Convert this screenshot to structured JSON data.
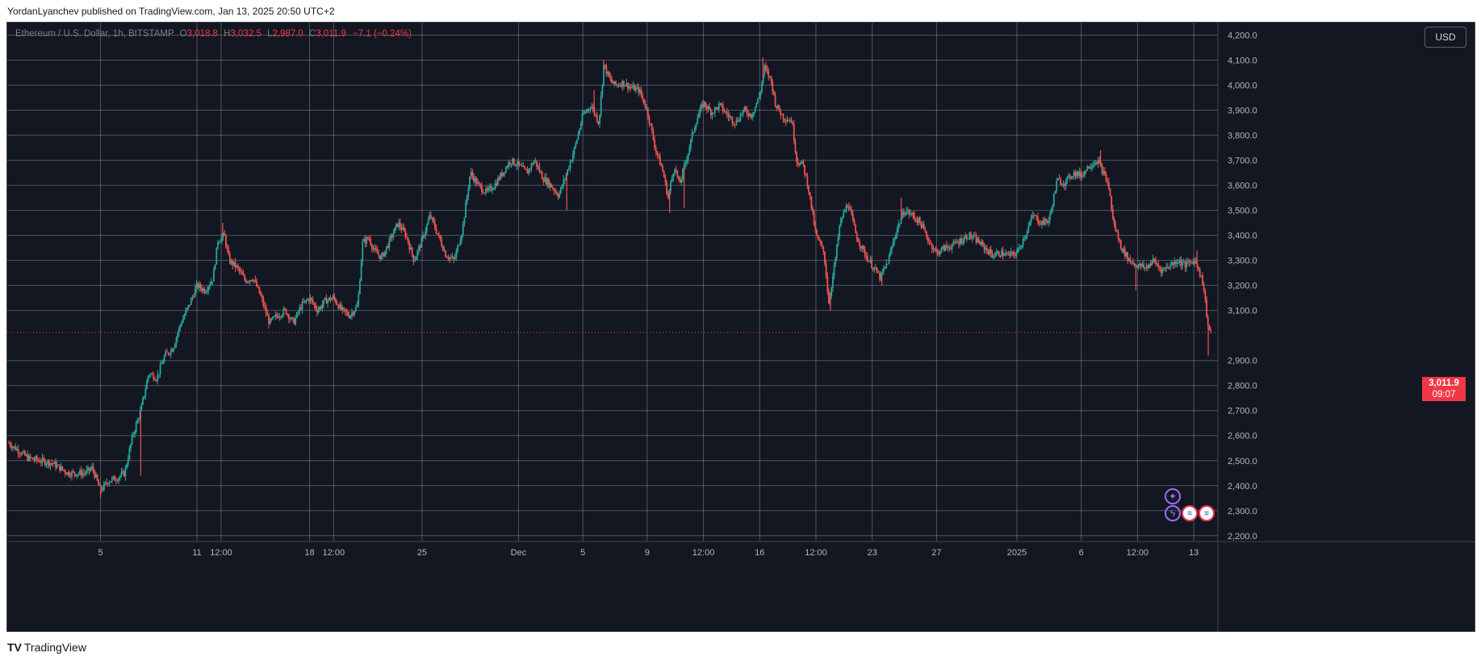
{
  "header": {
    "published_text": "YordanLyanchev published on TradingView.com, Jan 13, 2025 20:50 UTC+2"
  },
  "legend": {
    "symbol": "Ethereum / U.S. Dollar, 1h, BITSTAMP",
    "open_label": "O",
    "open": "3,018.8",
    "high_label": "H",
    "high": "3,032.5",
    "low_label": "L",
    "low": "2,987.0",
    "close_label": "C",
    "close": "3,011.9",
    "change": "−7.1 (−0.24%)"
  },
  "currency": "USD",
  "last_price": {
    "value": "3,011.9",
    "countdown": "09:07"
  },
  "footer": {
    "logo": "TV",
    "brand": "TradingView"
  },
  "colors": {
    "background": "#131722",
    "up": "#26a69a",
    "down": "#ef5350",
    "grid": "#9aa0ad",
    "price_line": "#f23645"
  },
  "icons": {
    "event_star": "star-icon",
    "event_lightning": "lightning-icon",
    "event_flag": "us-flag-icon"
  },
  "chart_data": {
    "type": "candlestick",
    "symbol": "Ethereum / U.S. Dollar",
    "interval": "1h",
    "exchange": "BITSTAMP",
    "ylim": [
      2180,
      4250
    ],
    "y_ticks": [
      "4,200.0",
      "4,100.0",
      "4,000.0",
      "3,900.0",
      "3,800.0",
      "3,700.0",
      "3,600.0",
      "3,500.0",
      "3,400.0",
      "3,300.0",
      "3,200.0",
      "3,100.0",
      "2,900.0",
      "2,800.0",
      "2,700.0",
      "2,600.0",
      "2,500.0",
      "2,400.0",
      "2,300.0",
      "2,200.0"
    ],
    "x_ticks": [
      "5",
      "11",
      "12:00",
      "18",
      "12:00",
      "25",
      "Dec",
      "5",
      "9",
      "12:00",
      "16",
      "12:00",
      "23",
      "27",
      "2025",
      "6",
      "12:00",
      "13"
    ],
    "x_tick_positions": [
      5,
      11,
      12.5,
      18,
      19.5,
      25,
      31,
      35,
      39,
      42.5,
      46,
      49.5,
      53,
      57,
      62,
      66,
      69.5,
      73
    ],
    "x_range": [
      -0.8,
      74.5
    ],
    "x_axis_note": "positions in days; day 0 = Oct 31 2024 00:00",
    "price_path": [
      [
        -0.7,
        2570
      ],
      [
        0.5,
        2510
      ],
      [
        2,
        2490
      ],
      [
        3,
        2450
      ],
      [
        4,
        2450
      ],
      [
        4.5,
        2470
      ],
      [
        5,
        2380
      ],
      [
        5.5,
        2420
      ],
      [
        6,
        2430
      ],
      [
        6.5,
        2450
      ],
      [
        7,
        2600
      ],
      [
        7.5,
        2700
      ],
      [
        8,
        2850
      ],
      [
        8.5,
        2830
      ],
      [
        9,
        2920
      ],
      [
        9.5,
        2950
      ],
      [
        10,
        3050
      ],
      [
        10.5,
        3120
      ],
      [
        11,
        3200
      ],
      [
        11.5,
        3180
      ],
      [
        12,
        3230
      ],
      [
        12.3,
        3380
      ],
      [
        12.7,
        3400
      ],
      [
        13,
        3300
      ],
      [
        13.5,
        3270
      ],
      [
        14,
        3220
      ],
      [
        14.5,
        3230
      ],
      [
        15,
        3150
      ],
      [
        15.5,
        3050
      ],
      [
        16,
        3080
      ],
      [
        16.5,
        3100
      ],
      [
        17,
        3050
      ],
      [
        17.5,
        3120
      ],
      [
        18,
        3150
      ],
      [
        18.5,
        3100
      ],
      [
        19,
        3140
      ],
      [
        19.5,
        3150
      ],
      [
        20,
        3100
      ],
      [
        20.5,
        3080
      ],
      [
        21,
        3120
      ],
      [
        21.3,
        3370
      ],
      [
        21.7,
        3390
      ],
      [
        22,
        3340
      ],
      [
        22.5,
        3310
      ],
      [
        23,
        3380
      ],
      [
        23.5,
        3450
      ],
      [
        24,
        3400
      ],
      [
        24.5,
        3300
      ],
      [
        25,
        3380
      ],
      [
        25.5,
        3480
      ],
      [
        26,
        3400
      ],
      [
        26.5,
        3320
      ],
      [
        27,
        3300
      ],
      [
        27.5,
        3420
      ],
      [
        28,
        3650
      ],
      [
        28.5,
        3600
      ],
      [
        29,
        3570
      ],
      [
        29.5,
        3600
      ],
      [
        30,
        3650
      ],
      [
        30.5,
        3700
      ],
      [
        31,
        3680
      ],
      [
        31.5,
        3650
      ],
      [
        32,
        3700
      ],
      [
        32.5,
        3630
      ],
      [
        33,
        3600
      ],
      [
        33.5,
        3560
      ],
      [
        34,
        3650
      ],
      [
        34.5,
        3750
      ],
      [
        35,
        3880
      ],
      [
        35.5,
        3920
      ],
      [
        36,
        3850
      ],
      [
        36.3,
        4080
      ],
      [
        36.7,
        4020
      ],
      [
        37,
        4000
      ],
      [
        37.5,
        4010
      ],
      [
        38,
        3990
      ],
      [
        38.5,
        3980
      ],
      [
        39,
        3900
      ],
      [
        39.5,
        3750
      ],
      [
        40,
        3650
      ],
      [
        40.3,
        3550
      ],
      [
        40.7,
        3680
      ],
      [
        41,
        3600
      ],
      [
        41.5,
        3720
      ],
      [
        42,
        3850
      ],
      [
        42.5,
        3930
      ],
      [
        43,
        3890
      ],
      [
        43.5,
        3920
      ],
      [
        44,
        3880
      ],
      [
        44.5,
        3850
      ],
      [
        45,
        3900
      ],
      [
        45.5,
        3880
      ],
      [
        46,
        3960
      ],
      [
        46.3,
        4070
      ],
      [
        46.7,
        4020
      ],
      [
        47,
        3920
      ],
      [
        47.5,
        3870
      ],
      [
        48,
        3860
      ],
      [
        48.3,
        3700
      ],
      [
        48.7,
        3680
      ],
      [
        49,
        3600
      ],
      [
        49.5,
        3400
      ],
      [
        50,
        3330
      ],
      [
        50.3,
        3130
      ],
      [
        50.7,
        3300
      ],
      [
        51,
        3450
      ],
      [
        51.5,
        3530
      ],
      [
        52,
        3400
      ],
      [
        52.5,
        3330
      ],
      [
        53,
        3280
      ],
      [
        53.5,
        3230
      ],
      [
        54,
        3300
      ],
      [
        54.5,
        3420
      ],
      [
        55,
        3500
      ],
      [
        55.5,
        3480
      ],
      [
        56,
        3450
      ],
      [
        56.5,
        3380
      ],
      [
        57,
        3330
      ],
      [
        57.5,
        3350
      ],
      [
        58,
        3360
      ],
      [
        58.5,
        3380
      ],
      [
        59,
        3400
      ],
      [
        59.5,
        3380
      ],
      [
        60,
        3350
      ],
      [
        60.5,
        3320
      ],
      [
        61,
        3330
      ],
      [
        61.5,
        3320
      ],
      [
        62,
        3330
      ],
      [
        62.5,
        3400
      ],
      [
        63,
        3480
      ],
      [
        63.5,
        3450
      ],
      [
        64,
        3460
      ],
      [
        64.5,
        3620
      ],
      [
        65,
        3610
      ],
      [
        65.5,
        3650
      ],
      [
        66,
        3640
      ],
      [
        66.5,
        3680
      ],
      [
        67,
        3700
      ],
      [
        67.3,
        3660
      ],
      [
        67.7,
        3600
      ],
      [
        68,
        3450
      ],
      [
        68.5,
        3350
      ],
      [
        69,
        3300
      ],
      [
        69.5,
        3280
      ],
      [
        70,
        3270
      ],
      [
        70.5,
        3300
      ],
      [
        71,
        3260
      ],
      [
        71.5,
        3280
      ],
      [
        72,
        3300
      ],
      [
        72.5,
        3280
      ],
      [
        73,
        3300
      ],
      [
        73.3,
        3270
      ],
      [
        73.6,
        3200
      ],
      [
        73.9,
        3030
      ],
      [
        74.1,
        3011.9
      ]
    ],
    "spikes_high": [
      [
        12.6,
        3450
      ],
      [
        35.7,
        3980
      ],
      [
        36.3,
        4100
      ],
      [
        46.2,
        4110
      ],
      [
        54.8,
        3550
      ],
      [
        67.2,
        3740
      ],
      [
        73.2,
        3340
      ]
    ],
    "spikes_low": [
      [
        5,
        2350
      ],
      [
        7.5,
        2440
      ],
      [
        34,
        3500
      ],
      [
        40.4,
        3490
      ],
      [
        41.3,
        3510
      ],
      [
        50.4,
        3100
      ],
      [
        53.6,
        3200
      ],
      [
        69.4,
        3180
      ],
      [
        73.9,
        2920
      ]
    ],
    "last_price": 3011.9,
    "candle_colors": {
      "up": "#26a69a",
      "down": "#ef5350"
    }
  }
}
